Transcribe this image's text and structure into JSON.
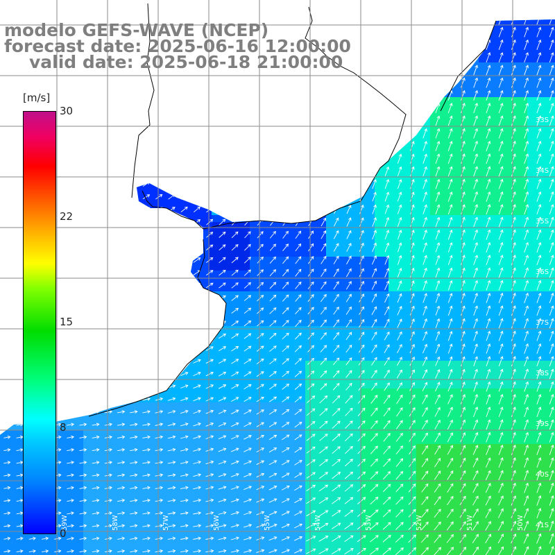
{
  "header": {
    "model_line": "modelo GEFS-WAVE (NCEP)",
    "forecast_line": "forecast date: 2025-06-16 12:00:00",
    "valid_line": "valid date: 2025-06-18 21:00:00"
  },
  "colorbar": {
    "units": "[m/s]",
    "ticks": [
      "30",
      "22",
      "15",
      "8",
      "0"
    ],
    "range": [
      0,
      30
    ],
    "palette": [
      "#0000ff",
      "#0080ff",
      "#00ffff",
      "#00dd00",
      "#ffff00",
      "#ff5000",
      "#ff0000",
      "#c0108a"
    ]
  },
  "map": {
    "variable": "wind speed and direction",
    "land_color": "#ffffff",
    "coastline_color": "#000000",
    "grid_color": "#888888",
    "arrow_color": "#ffffff",
    "lat_labels": [
      "33S",
      "34S",
      "35S",
      "36S",
      "37S",
      "38S",
      "39S",
      "40S",
      "41S"
    ],
    "lon_labels": [
      "59W",
      "58W",
      "57W",
      "56W",
      "55W",
      "54W",
      "53W",
      "52W",
      "51W",
      "50W"
    ]
  }
}
